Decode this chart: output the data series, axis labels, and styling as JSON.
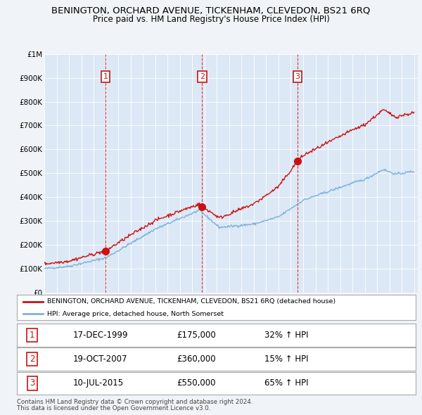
{
  "title": "BENINGTON, ORCHARD AVENUE, TICKENHAM, CLEVEDON, BS21 6RQ",
  "subtitle": "Price paid vs. HM Land Registry's House Price Index (HPI)",
  "background_color": "#f0f4f8",
  "plot_bg_color": "#dce8f5",
  "ylim": [
    0,
    1000000
  ],
  "yticks": [
    0,
    100000,
    200000,
    300000,
    400000,
    500000,
    600000,
    700000,
    800000,
    900000,
    1000000
  ],
  "ytick_labels": [
    "£0",
    "£100K",
    "£200K",
    "£300K",
    "£400K",
    "£500K",
    "£600K",
    "£700K",
    "£800K",
    "£900K",
    "£1M"
  ],
  "sales": [
    {
      "label": 1,
      "date": "17-DEC-1999",
      "year": 1999.96,
      "price": 175000,
      "pct": "32%",
      "dir": "↑"
    },
    {
      "label": 2,
      "date": "19-OCT-2007",
      "year": 2007.8,
      "price": 360000,
      "pct": "15%",
      "dir": "↑"
    },
    {
      "label": 3,
      "date": "10-JUL-2015",
      "year": 2015.53,
      "price": 550000,
      "pct": "65%",
      "dir": "↑"
    }
  ],
  "hpi_color": "#7ab3d9",
  "price_color": "#cc1111",
  "legend_entries": [
    "BENINGTON, ORCHARD AVENUE, TICKENHAM, CLEVEDON, BS21 6RQ (detached house)",
    "HPI: Average price, detached house, North Somerset"
  ],
  "footer_line1": "Contains HM Land Registry data © Crown copyright and database right 2024.",
  "footer_line2": "This data is licensed under the Open Government Licence v3.0."
}
